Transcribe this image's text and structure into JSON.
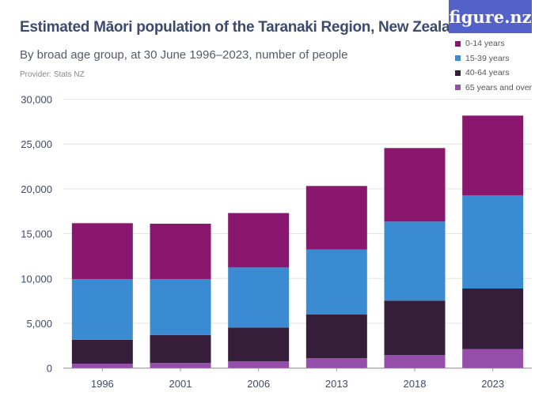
{
  "logo": "figure.nz",
  "chart_data": {
    "type": "bar",
    "stacked": true,
    "title": "Estimated Māori population of the Taranaki Region, New Zealand",
    "subtitle": "By broad age group, at 30 June 1996–2023, number of people",
    "provider": "Provider: Stats NZ",
    "categories": [
      "1996",
      "2001",
      "2006",
      "2013",
      "2018",
      "2023"
    ],
    "ylim": [
      0,
      30000
    ],
    "yticks": [
      0,
      5000,
      10000,
      15000,
      20000,
      25000,
      30000
    ],
    "ytick_labels": [
      "0",
      "5,000",
      "10,000",
      "15,000",
      "20,000",
      "25,000",
      "30,000"
    ],
    "grid": true,
    "legend_position": "top-right",
    "series": [
      {
        "name": "65 years and over",
        "color": "#954ea9",
        "values": [
          500,
          590,
          770,
          1120,
          1470,
          2120
        ]
      },
      {
        "name": "40-64 years",
        "color": "#361e3b",
        "values": [
          2670,
          3110,
          3760,
          4880,
          6060,
          6760
        ]
      },
      {
        "name": "15-39 years",
        "color": "#3b8bd3",
        "values": [
          6770,
          6240,
          6700,
          7230,
          8820,
          10380
        ]
      },
      {
        "name": "0-14 years",
        "color": "#8a176e",
        "values": [
          6230,
          6170,
          6070,
          7090,
          8200,
          8910
        ]
      }
    ]
  }
}
